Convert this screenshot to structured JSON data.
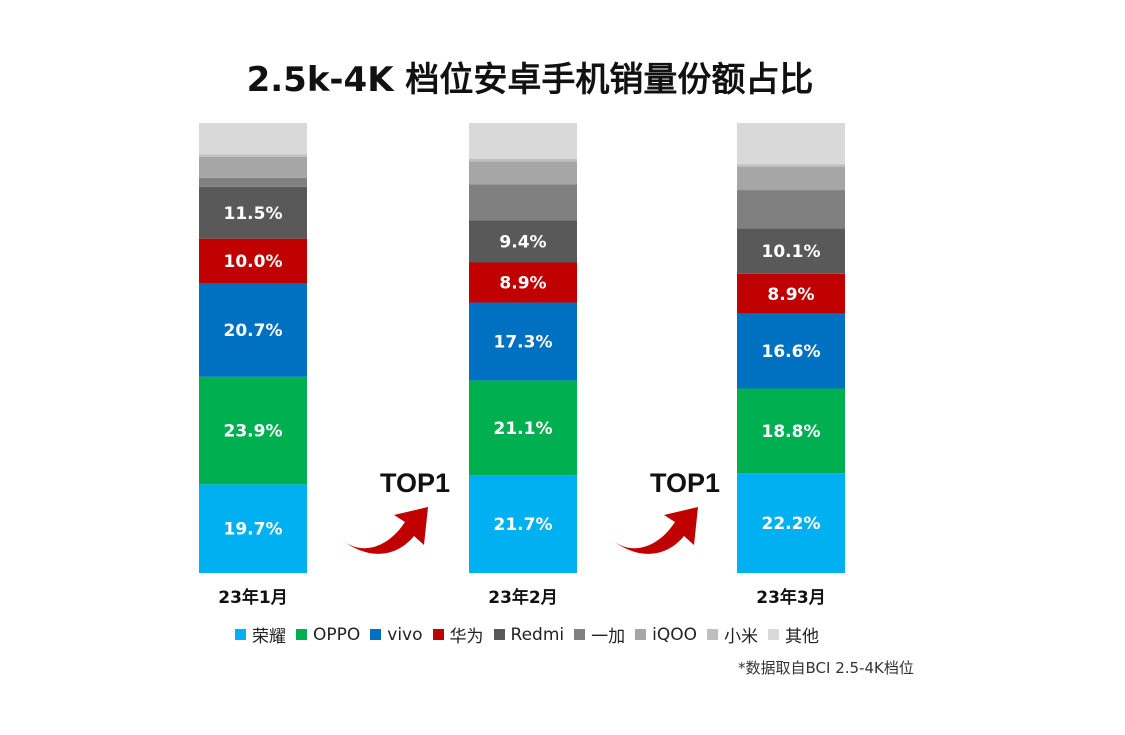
{
  "title": "2.5k-4K 档位安卓手机销量份额占比",
  "footnote": "*数据取自BCI 2.5-4K档位",
  "top_label": "TOP1",
  "legend": [
    {
      "name": "荣耀",
      "color": "#00b0f0"
    },
    {
      "name": "OPPO",
      "color": "#00b050"
    },
    {
      "name": "vivo",
      "color": "#0070c0"
    },
    {
      "name": "华为",
      "color": "#c00000"
    },
    {
      "name": "Redmi",
      "color": "#595959"
    },
    {
      "name": "一加",
      "color": "#808080"
    },
    {
      "name": "iQOO",
      "color": "#a6a6a6"
    },
    {
      "name": "小米",
      "color": "#bfbfbf"
    },
    {
      "name": "其他",
      "color": "#d9d9d9"
    }
  ],
  "chart_data": {
    "type": "bar",
    "stacked": true,
    "title": "2.5k-4K 档位安卓手机销量份额占比",
    "categories": [
      "23年1月",
      "23年2月",
      "23年3月"
    ],
    "ylim": [
      0,
      100
    ],
    "unit": "%",
    "series": [
      {
        "name": "荣耀",
        "color": "#00b0f0",
        "values": [
          19.7,
          21.7,
          22.2
        ],
        "labels": [
          "19.7%",
          "21.7%",
          "22.2%"
        ]
      },
      {
        "name": "OPPO",
        "color": "#00b050",
        "values": [
          23.9,
          21.1,
          18.8
        ],
        "labels": [
          "23.9%",
          "21.1%",
          "18.8%"
        ]
      },
      {
        "name": "vivo",
        "color": "#0070c0",
        "values": [
          20.7,
          17.3,
          16.6
        ],
        "labels": [
          "20.7%",
          "17.3%",
          "16.6%"
        ]
      },
      {
        "name": "华为",
        "color": "#c00000",
        "values": [
          10.0,
          8.9,
          8.9
        ],
        "labels": [
          "10.0%",
          "8.9%",
          "8.9%"
        ]
      },
      {
        "name": "Redmi",
        "color": "#595959",
        "values": [
          11.5,
          9.4,
          10.1
        ],
        "labels": [
          "11.5%",
          "9.4%",
          "10.1%"
        ]
      },
      {
        "name": "一加",
        "color": "#808080",
        "values": [
          2.0,
          8.0,
          8.5
        ],
        "labels": [
          "",
          "",
          ""
        ]
      },
      {
        "name": "iQOO",
        "color": "#a6a6a6",
        "values": [
          4.7,
          5.1,
          5.2
        ],
        "labels": [
          "",
          "",
          ""
        ]
      },
      {
        "name": "小米",
        "color": "#bfbfbf",
        "values": [
          0.5,
          0.5,
          0.5
        ],
        "labels": [
          "",
          "",
          ""
        ]
      },
      {
        "name": "其他",
        "color": "#d9d9d9",
        "values": [
          7.0,
          8.0,
          9.2
        ],
        "labels": [
          "",
          "",
          ""
        ]
      }
    ]
  }
}
